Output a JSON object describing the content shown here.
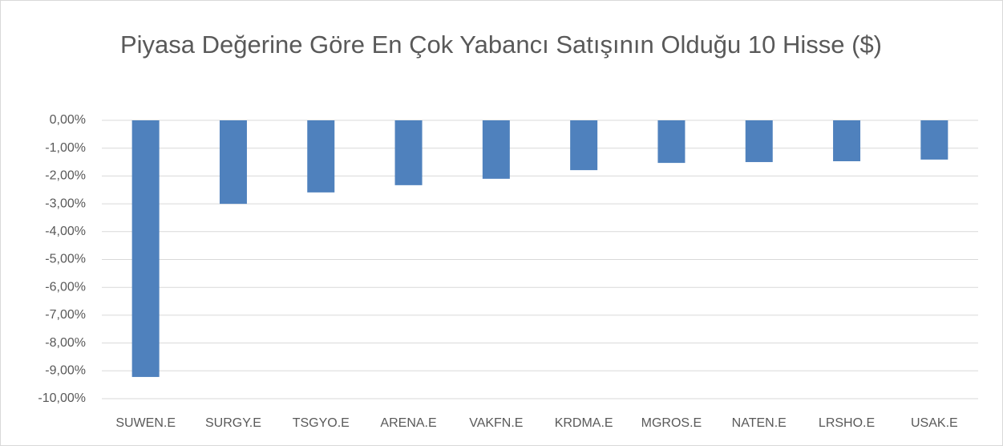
{
  "chart_data": {
    "type": "bar",
    "title": "Piyasa Değerine Göre En Çok Yabancı Satışının Olduğu 10 Hisse ($)",
    "categories": [
      "SUWEN.E",
      "SURGY.E",
      "TSGYO.E",
      "ARENA.E",
      "VAKFN.E",
      "KRDMA.E",
      "MGROS.E",
      "NATEN.E",
      "LRSHO.E",
      "USAK.E"
    ],
    "values": [
      -9.22,
      -3.0,
      -2.59,
      -2.33,
      -2.1,
      -1.79,
      -1.53,
      -1.5,
      -1.47,
      -1.41
    ],
    "color": "#4f81bd",
    "ylim": [
      -10,
      0
    ],
    "yticks": [
      {
        "value": 0,
        "label": "0,00%"
      },
      {
        "value": -1,
        "label": "-1,00%"
      },
      {
        "value": -2,
        "label": "-2,00%"
      },
      {
        "value": -3,
        "label": "-3,00%"
      },
      {
        "value": -4,
        "label": "-4,00%"
      },
      {
        "value": -5,
        "label": "-5,00%"
      },
      {
        "value": -6,
        "label": "-6,00%"
      },
      {
        "value": -7,
        "label": "-7,00%"
      },
      {
        "value": -8,
        "label": "-8,00%"
      },
      {
        "value": -9,
        "label": "-9,00%"
      },
      {
        "value": -10,
        "label": "-10,00%"
      }
    ],
    "grid": true
  }
}
